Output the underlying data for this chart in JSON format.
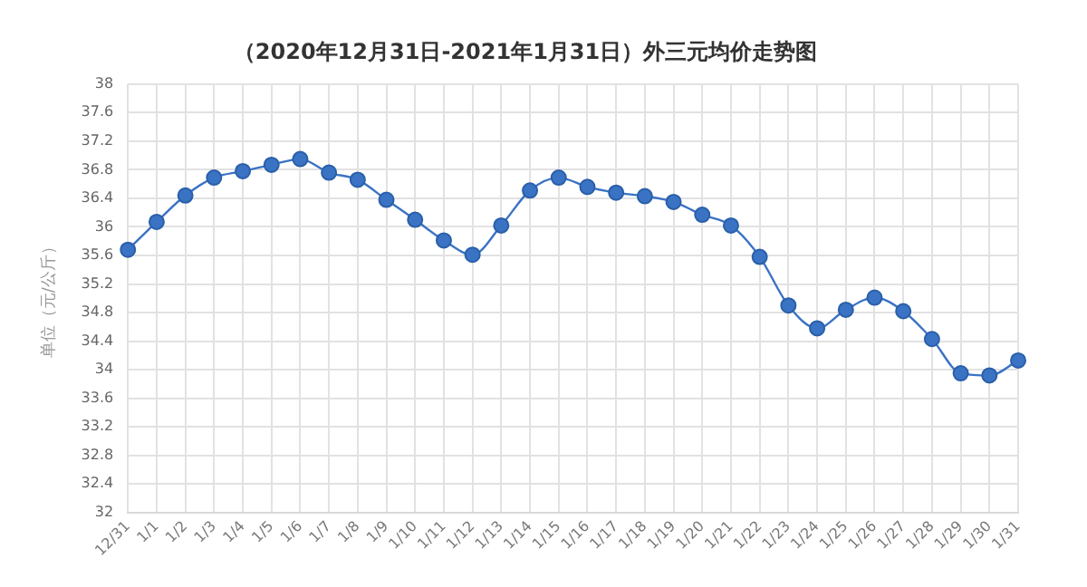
{
  "chart_data": {
    "type": "line",
    "title": "（2020年12月31日-2021年1月31日）外三元均价走势图",
    "ylabel": "单位（元/公斤）",
    "categories": [
      "12/31",
      "1/1",
      "1/2",
      "1/3",
      "1/4",
      "1/5",
      "1/6",
      "1/7",
      "1/8",
      "1/9",
      "1/10",
      "1/11",
      "1/12",
      "1/13",
      "1/14",
      "1/15",
      "1/16",
      "1/17",
      "1/18",
      "1/19",
      "1/20",
      "1/21",
      "1/22",
      "1/23",
      "1/24",
      "1/25",
      "1/26",
      "1/27",
      "1/28",
      "1/29",
      "1/30",
      "1/31"
    ],
    "series": [
      {
        "color": "#3a73c4",
        "values": [
          35.68,
          36.07,
          36.44,
          36.69,
          36.78,
          36.87,
          36.95,
          36.76,
          36.66,
          36.38,
          36.1,
          35.81,
          35.61,
          36.02,
          36.51,
          36.69,
          36.56,
          36.48,
          36.43,
          36.35,
          36.17,
          36.02,
          35.58,
          34.9,
          34.58,
          34.84,
          35.01,
          34.82,
          34.43,
          33.95,
          33.92,
          34.13
        ]
      }
    ],
    "ylim": [
      32,
      38
    ],
    "yticks": [
      32,
      32.4,
      32.8,
      33.2,
      33.6,
      34,
      34.4,
      34.8,
      35.2,
      35.6,
      36,
      36.4,
      36.8,
      37.2,
      37.6,
      38
    ],
    "grid": true,
    "legend": false,
    "marker": "circle",
    "line_style": "solid"
  }
}
